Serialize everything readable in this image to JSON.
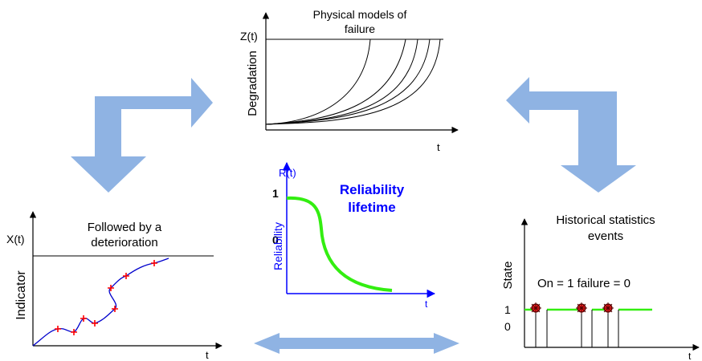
{
  "colors": {
    "arrow": "#8fb3e3",
    "axis_blue": "#0000ff",
    "curve_green": "#33ee11",
    "marker_red": "#ff0000",
    "text_blue": "#0000ff"
  },
  "top_panel": {
    "title_line1": "Physical models of",
    "title_line2": "failure",
    "y_axis_label": "Z(t)",
    "vertical_label": "Degradation",
    "x_axis_label": "t"
  },
  "center_panel": {
    "y_axis_label": "R(t)",
    "tick_one": "1",
    "tick_zero": "0",
    "vertical_label": "Reliability",
    "x_axis_label": "t",
    "title_line1": "Reliability",
    "title_line2": "lifetime"
  },
  "left_panel": {
    "title_line1": "Followed by a",
    "title_line2": "deterioration",
    "y_axis_label": "X(t)",
    "vertical_label": "Indicator",
    "x_axis_label": "t"
  },
  "right_panel": {
    "title_line1": "Historical statistics",
    "title_line2": "events",
    "vertical_label": "State",
    "state_legend": "On = 1 failure = 0",
    "tick_one": "1",
    "tick_zero": "0",
    "x_axis_label": "t"
  }
}
